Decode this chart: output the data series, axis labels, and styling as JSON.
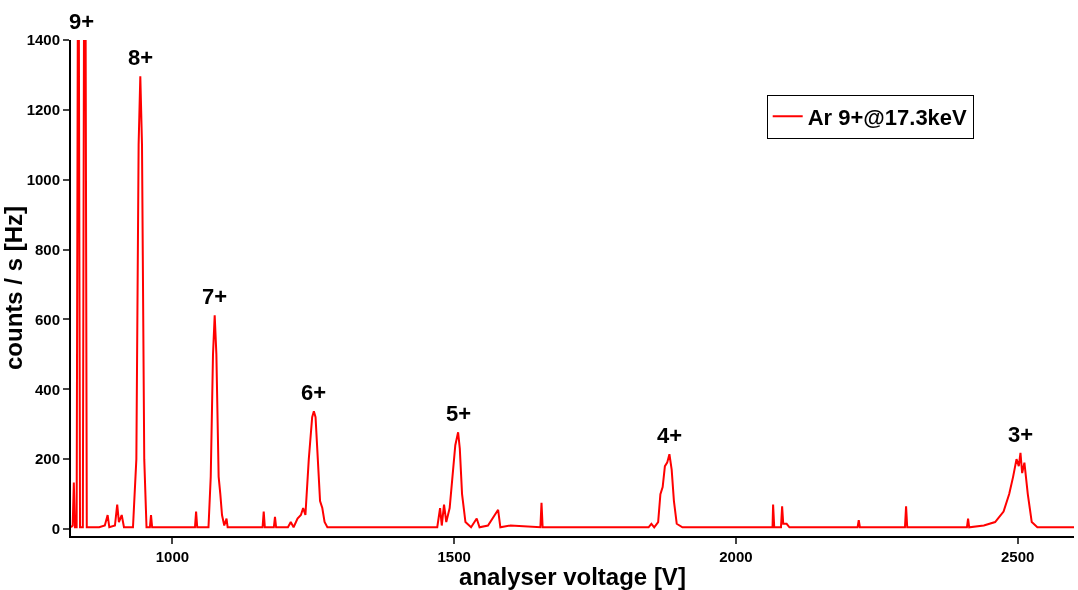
{
  "chart_data": {
    "type": "line",
    "xlabel": "analyser voltage [V]",
    "ylabel": "counts / s [Hz]",
    "xlim": [
      820,
      2600
    ],
    "xticks": [
      1000,
      1500,
      2000,
      2500
    ],
    "ylim": [
      -20,
      1400
    ],
    "yticks": [
      0,
      200,
      400,
      600,
      800,
      1000,
      1200,
      1400
    ],
    "legend": "top right",
    "marker": "none",
    "line_style": "solid",
    "annotations": [
      {
        "text": "9+",
        "x": 838,
        "y": 1400
      },
      {
        "text": "8+",
        "x": 943,
        "y": 1296
      },
      {
        "text": "7+",
        "x": 1075,
        "y": 612
      },
      {
        "text": "6+",
        "x": 1251,
        "y": 337
      },
      {
        "text": "5+",
        "x": 1507,
        "y": 277
      },
      {
        "text": "4+",
        "x": 1882,
        "y": 214
      },
      {
        "text": "3+",
        "x": 2505,
        "y": 218
      }
    ],
    "series": [
      {
        "name": "Ar 9+@17.3keV",
        "color": "#ff0000",
        "x": [
          820,
          823,
          825,
          827,
          830,
          832,
          834,
          836,
          841,
          843,
          846,
          848,
          870,
          880,
          885,
          888,
          898,
          902,
          905,
          910,
          914,
          930,
          936,
          940,
          943,
          946,
          950,
          954,
          960,
          962,
          964,
          1000,
          1040,
          1042,
          1044,
          1064,
          1068,
          1072,
          1075,
          1078,
          1082,
          1085,
          1088,
          1092,
          1096,
          1098,
          1160,
          1162,
          1164,
          1180,
          1182,
          1184,
          1205,
          1210,
          1215,
          1222,
          1228,
          1232,
          1236,
          1242,
          1248,
          1251,
          1254,
          1258,
          1262,
          1266,
          1270,
          1275,
          1300,
          1400,
          1470,
          1475,
          1478,
          1482,
          1486,
          1492,
          1497,
          1502,
          1507,
          1510,
          1514,
          1520,
          1530,
          1540,
          1545,
          1560,
          1578,
          1582,
          1600,
          1653,
          1655,
          1657,
          1700,
          1800,
          1845,
          1850,
          1855,
          1862,
          1866,
          1870,
          1874,
          1878,
          1882,
          1886,
          1890,
          1895,
          1905,
          2000,
          2065,
          2066,
          2068,
          2080,
          2082,
          2084,
          2090,
          2095,
          2160,
          2216,
          2218,
          2220,
          2300,
          2302,
          2304,
          2350,
          2410,
          2412,
          2414,
          2440,
          2460,
          2475,
          2485,
          2492,
          2498,
          2502,
          2505,
          2508,
          2512,
          2518,
          2525,
          2535,
          2600
        ],
        "values": [
          5,
          10,
          133,
          5,
          5,
          1400,
          1400,
          5,
          5,
          1400,
          1400,
          5,
          5,
          10,
          40,
          5,
          10,
          70,
          20,
          40,
          5,
          5,
          200,
          1100,
          1296,
          1100,
          200,
          5,
          5,
          40,
          5,
          5,
          5,
          50,
          5,
          5,
          150,
          500,
          612,
          500,
          150,
          100,
          40,
          10,
          30,
          5,
          5,
          50,
          5,
          5,
          35,
          5,
          5,
          20,
          5,
          30,
          40,
          60,
          40,
          200,
          320,
          337,
          320,
          200,
          80,
          60,
          20,
          5,
          5,
          5,
          5,
          60,
          10,
          70,
          20,
          60,
          150,
          240,
          277,
          230,
          100,
          20,
          5,
          30,
          5,
          10,
          55,
          5,
          10,
          5,
          75,
          5,
          5,
          5,
          5,
          15,
          5,
          20,
          100,
          120,
          180,
          190,
          214,
          170,
          80,
          15,
          5,
          5,
          5,
          70,
          5,
          5,
          65,
          15,
          15,
          5,
          5,
          5,
          25,
          5,
          5,
          65,
          5,
          5,
          5,
          30,
          5,
          10,
          20,
          50,
          100,
          150,
          200,
          180,
          218,
          160,
          190,
          100,
          20,
          5,
          5
        ]
      }
    ]
  }
}
